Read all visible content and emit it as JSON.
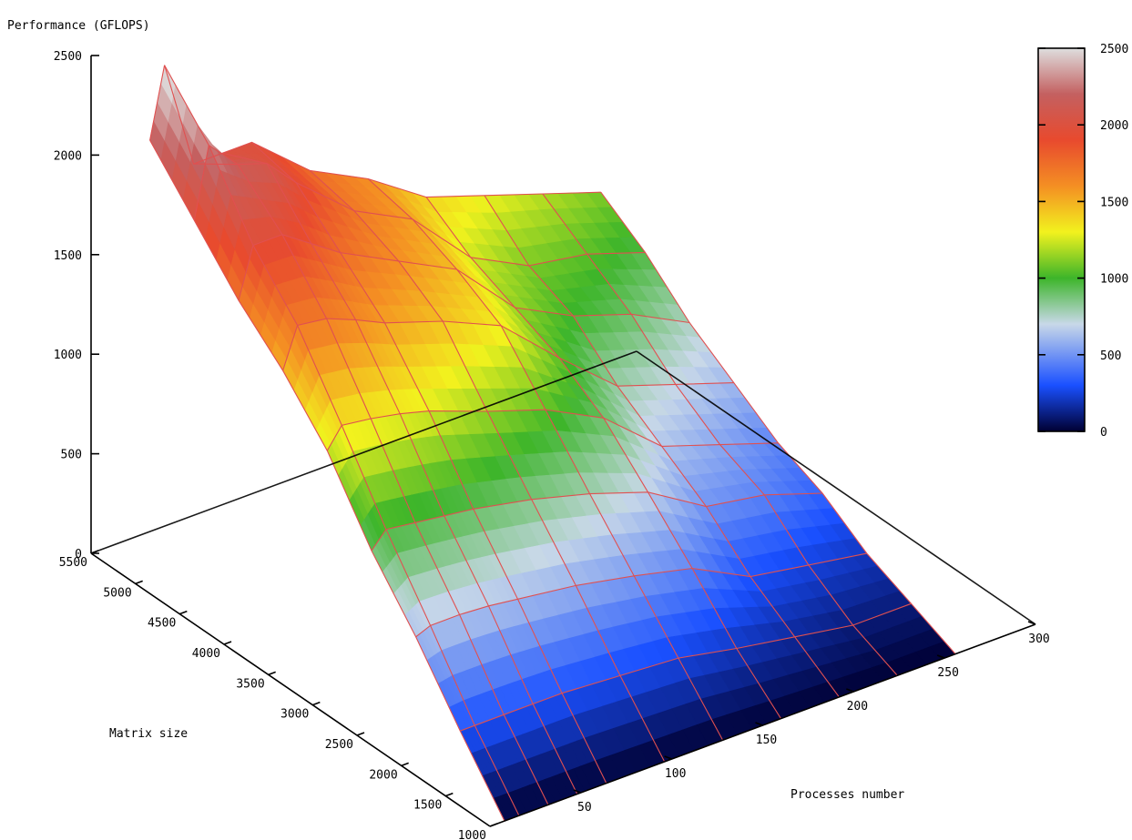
{
  "chart_data": {
    "type": "surface3d",
    "zlabel": "Performance (GFLOPS)",
    "xlabel": "Processes number",
    "ylabel": "Matrix size",
    "z_ticks": [
      0,
      500,
      1000,
      1500,
      2000,
      2500
    ],
    "x_ticks": [
      50,
      100,
      150,
      200,
      250,
      300
    ],
    "y_ticks": [
      1000,
      1500,
      2000,
      2500,
      3000,
      3500,
      4000,
      4500,
      5000,
      5500
    ],
    "xlim": [
      0,
      300
    ],
    "ylim": [
      1000,
      5500
    ],
    "zlim": [
      0,
      2500
    ],
    "colorbar": {
      "ticks": [
        0,
        500,
        1000,
        1500,
        2000,
        2500
      ],
      "range": [
        0,
        2500
      ],
      "stops": [
        {
          "value": 0,
          "color": "#000033"
        },
        {
          "value": 300,
          "color": "#1a50ff"
        },
        {
          "value": 700,
          "color": "#c8d8e8"
        },
        {
          "value": 1000,
          "color": "#3db52a"
        },
        {
          "value": 1300,
          "color": "#f2f21e"
        },
        {
          "value": 1600,
          "color": "#f48f23"
        },
        {
          "value": 1900,
          "color": "#e84a2e"
        },
        {
          "value": 2200,
          "color": "#c46060"
        },
        {
          "value": 2500,
          "color": "#dedede"
        }
      ]
    },
    "mesh_color": "#e05050",
    "processes": [
      8,
      16,
      32,
      48,
      64,
      96,
      128,
      160,
      192,
      224,
      256
    ],
    "matrix_sizes": [
      1000,
      1500,
      2000,
      2500,
      3000,
      3500,
      4000,
      4500,
      5000
    ],
    "performance": [
      [
        0,
        300,
        620,
        900,
        1250,
        1500,
        1700,
        1950,
        2200
      ],
      [
        0,
        300,
        650,
        980,
        1350,
        1700,
        1950,
        2300,
        2550
      ],
      [
        0,
        300,
        650,
        960,
        1330,
        1680,
        1950,
        2150,
        2000
      ],
      [
        0,
        300,
        640,
        940,
        1300,
        1620,
        1850,
        2100,
        2000
      ],
      [
        0,
        300,
        620,
        920,
        1260,
        1550,
        1750,
        1950,
        2000
      ],
      [
        0,
        280,
        580,
        860,
        1150,
        1450,
        1600,
        1700,
        1750
      ],
      [
        0,
        260,
        520,
        780,
        1050,
        1320,
        1450,
        1550,
        1600
      ],
      [
        0,
        200,
        450,
        680,
        900,
        1050,
        1150,
        1250,
        1400
      ],
      [
        0,
        150,
        300,
        500,
        650,
        800,
        1000,
        1100,
        1300
      ],
      [
        0,
        100,
        250,
        450,
        550,
        700,
        900,
        1050,
        1200
      ],
      [
        0,
        100,
        200,
        350,
        450,
        600,
        750,
        950,
        1100
      ]
    ]
  }
}
